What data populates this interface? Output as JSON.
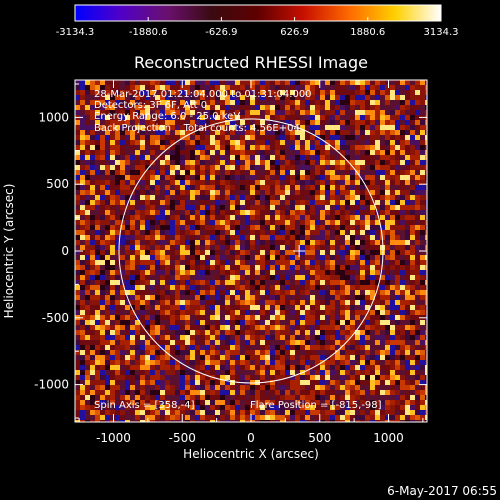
{
  "chart_data": {
    "type": "heatmap",
    "title": "Reconstructed RHESSI Image",
    "xlabel": "Heliocentric X (arcsec)",
    "ylabel": "Heliocentric Y (arcsec)",
    "xlim": [
      -1280,
      1280
    ],
    "ylim": [
      -1280,
      1280
    ],
    "x_ticks": [
      -1000,
      -500,
      0,
      500,
      1000
    ],
    "y_ticks": [
      -1000,
      -500,
      0,
      500,
      1000
    ],
    "x_tick_labels": [
      "-1000",
      "-500",
      "0",
      "500",
      "1000"
    ],
    "y_tick_labels": [
      "-1000",
      "-500",
      "0",
      "500",
      "1000"
    ],
    "colorbar": {
      "min": -3134.3,
      "max": 3134.3,
      "tick_values": [
        -3134.3,
        -1880.6,
        -626.9,
        626.9,
        1880.6,
        3134.3
      ],
      "tick_labels": [
        "-3134.3",
        "-1880.6",
        "-626.9",
        "626.9",
        "1880.6",
        "3134.3"
      ],
      "colors": [
        "#0000ff",
        "#5000c8",
        "#6a1070",
        "#3a0a10",
        "#600000",
        "#c81000",
        "#ff6a00",
        "#ffd000",
        "#ffffff"
      ]
    },
    "annotations": [
      "28-Mar-2017 01:21:04.000 to 01:31:04.000",
      "Detectors: 3F 6F, Att 0",
      "Energy Range: 6.0 - 25.0 keV",
      "Back Projection    Total counts: 4.56E+04"
    ],
    "spin_axis": "Spin Axis = [358,-4]",
    "flare_position": "Flare Position = [-815,-98]",
    "solar_limb": {
      "center": [
        0,
        0
      ],
      "radius": 960
    },
    "center_marker": [
      350,
      0
    ],
    "grid": false
  },
  "footer_date": "6-May-2017 06:55"
}
